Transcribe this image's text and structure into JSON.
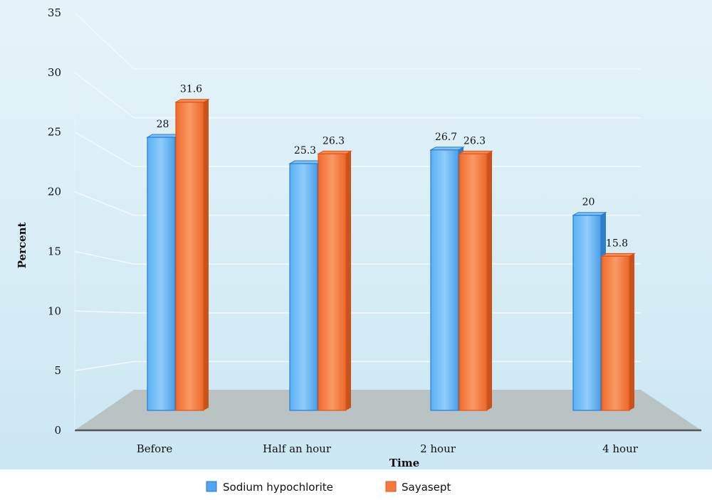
{
  "chart_data": {
    "type": "bar",
    "title": "",
    "xlabel": "Time",
    "ylabel": "Percent",
    "ylim": [
      0,
      35
    ],
    "yticks": [
      0,
      5,
      10,
      15,
      20,
      25,
      30,
      35
    ],
    "categories": [
      "Before",
      "Half an hour",
      "2 hour",
      "4 hour"
    ],
    "series": [
      {
        "name": "Sodium hypochlorite",
        "values": [
          28,
          25.3,
          26.7,
          20
        ],
        "labels": [
          "28",
          "25.3",
          "26.7",
          "20"
        ],
        "color": "#4fa6f2"
      },
      {
        "name": "Sayasept",
        "values": [
          31.6,
          26.3,
          26.3,
          15.8
        ],
        "labels": [
          "31.6",
          "26.3",
          "26.3",
          "15.8"
        ],
        "color": "#f47a3e"
      }
    ],
    "grid": true,
    "legend": "bottom",
    "style": "3d-bar",
    "background_color": "#d9eef7",
    "floor_color": "#b9c3c4"
  }
}
